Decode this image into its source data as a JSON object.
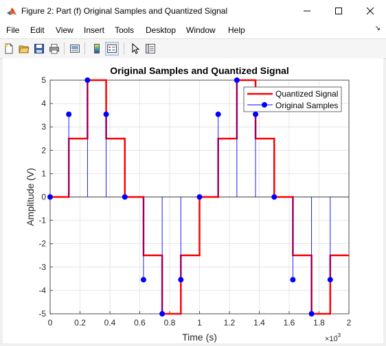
{
  "window": {
    "title": "Figure 2: Part (f) Original Samples and Quantized Signal",
    "minimize_icon": "minimize-icon",
    "maximize_icon": "maximize-icon",
    "close_icon": "close-icon"
  },
  "menu": {
    "items": [
      "File",
      "Edit",
      "View",
      "Insert",
      "Tools",
      "Desktop",
      "Window",
      "Help"
    ],
    "dock_arrow": "↘"
  },
  "toolbar": {
    "icons": [
      "new-figure-icon",
      "open-file-icon",
      "save-icon",
      "print-icon",
      "link-plot-icon",
      "colorbar-icon",
      "legend-icon",
      "pointer-icon",
      "property-inspector-icon"
    ]
  },
  "colors": {
    "quantized": "#ff0000",
    "samples": "#0000ff",
    "grid": "#dfdfdf"
  },
  "chart_data": {
    "type": "line",
    "title": "Original Samples and Quantized Signal",
    "xlabel": "Time (s)",
    "ylabel": "Amplitude (V)",
    "x_exponent_label": "×10",
    "x_exponent_power": "-3",
    "xlim": [
      0,
      2
    ],
    "ylim": [
      -5,
      5
    ],
    "x_scale_factor": 0.001,
    "xticks": [
      0,
      0.2,
      0.4,
      0.6,
      0.8,
      1,
      1.2,
      1.4,
      1.6,
      1.8,
      2
    ],
    "xtick_labels": [
      "0",
      "0.2",
      "0.4",
      "0.6",
      "0.8",
      "1",
      "1.2",
      "1.4",
      "1.6",
      "1.8",
      "2"
    ],
    "yticks": [
      -5,
      -4,
      -3,
      -2,
      -1,
      0,
      1,
      2,
      3,
      4,
      5
    ],
    "ytick_labels": [
      "-5",
      "-4",
      "-3",
      "-2",
      "-1",
      "0",
      "1",
      "2",
      "3",
      "4",
      "5"
    ],
    "grid": true,
    "legend_position": "top-right",
    "series": [
      {
        "name": "Quantized Signal",
        "style": "stairs",
        "x": [
          0,
          0.125,
          0.25,
          0.375,
          0.5,
          0.625,
          0.75,
          0.875,
          1,
          1.125,
          1.25,
          1.375,
          1.5,
          1.625,
          1.75,
          1.875
        ],
        "y": [
          0,
          2.5,
          5,
          2.5,
          0,
          -2.5,
          -5,
          -2.5,
          0,
          2.5,
          5,
          2.5,
          0,
          -2.5,
          -5,
          -2.5
        ]
      },
      {
        "name": "Original Samples",
        "style": "stem",
        "x": [
          0,
          0.125,
          0.25,
          0.375,
          0.5,
          0.625,
          0.75,
          0.875,
          1,
          1.125,
          1.25,
          1.375,
          1.5,
          1.625,
          1.75,
          1.875
        ],
        "y": [
          0,
          3.54,
          5,
          3.54,
          0,
          -3.54,
          -5,
          -3.54,
          0,
          3.54,
          5,
          3.54,
          0,
          -3.54,
          -5,
          -3.54
        ]
      }
    ]
  }
}
